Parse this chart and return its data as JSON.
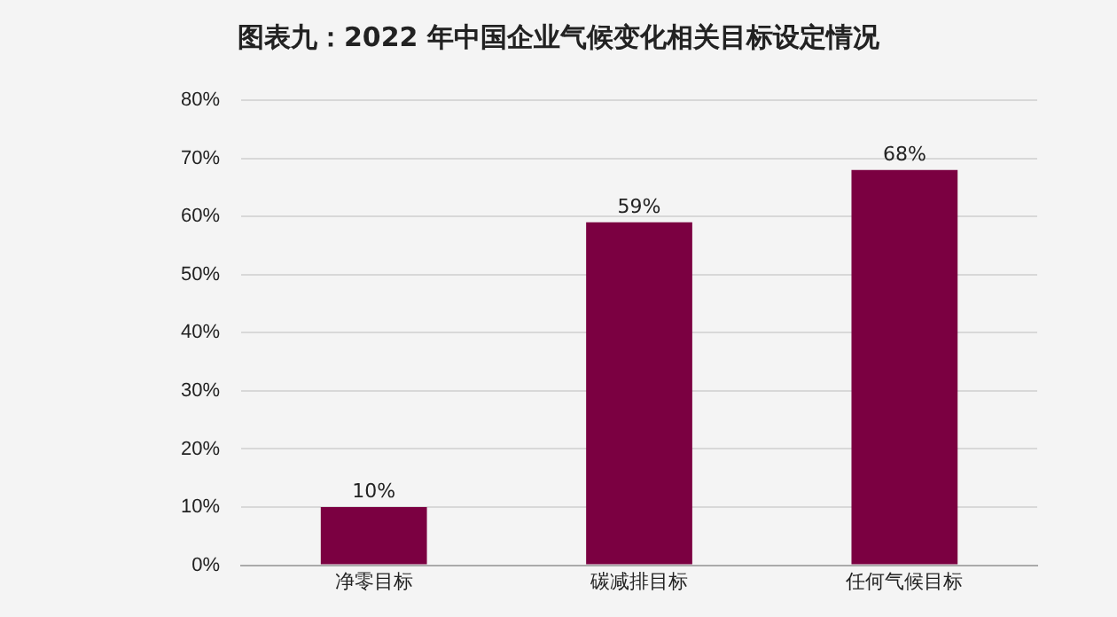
{
  "chart_data": {
    "type": "bar",
    "title": "图表九：2022 年中国企业气候变化相关目标设定情况",
    "categories": [
      "净零目标",
      "碳减排目标",
      "任何气候目标"
    ],
    "values": [
      10,
      59,
      68
    ],
    "color": "#7b0041",
    "value_labels": [
      "10%",
      "59%",
      "68%"
    ],
    "ylim": [
      0,
      80
    ],
    "yticks": [
      {
        "value": 0,
        "label": "0%"
      },
      {
        "value": 10,
        "label": "10%"
      },
      {
        "value": 20,
        "label": "20%"
      },
      {
        "value": 30,
        "label": "30%"
      },
      {
        "value": 40,
        "label": "40%"
      },
      {
        "value": 50,
        "label": "50%"
      },
      {
        "value": 60,
        "label": "60%"
      },
      {
        "value": 70,
        "label": "70%"
      },
      {
        "value": 80,
        "label": "80%"
      }
    ],
    "grid": "y"
  }
}
